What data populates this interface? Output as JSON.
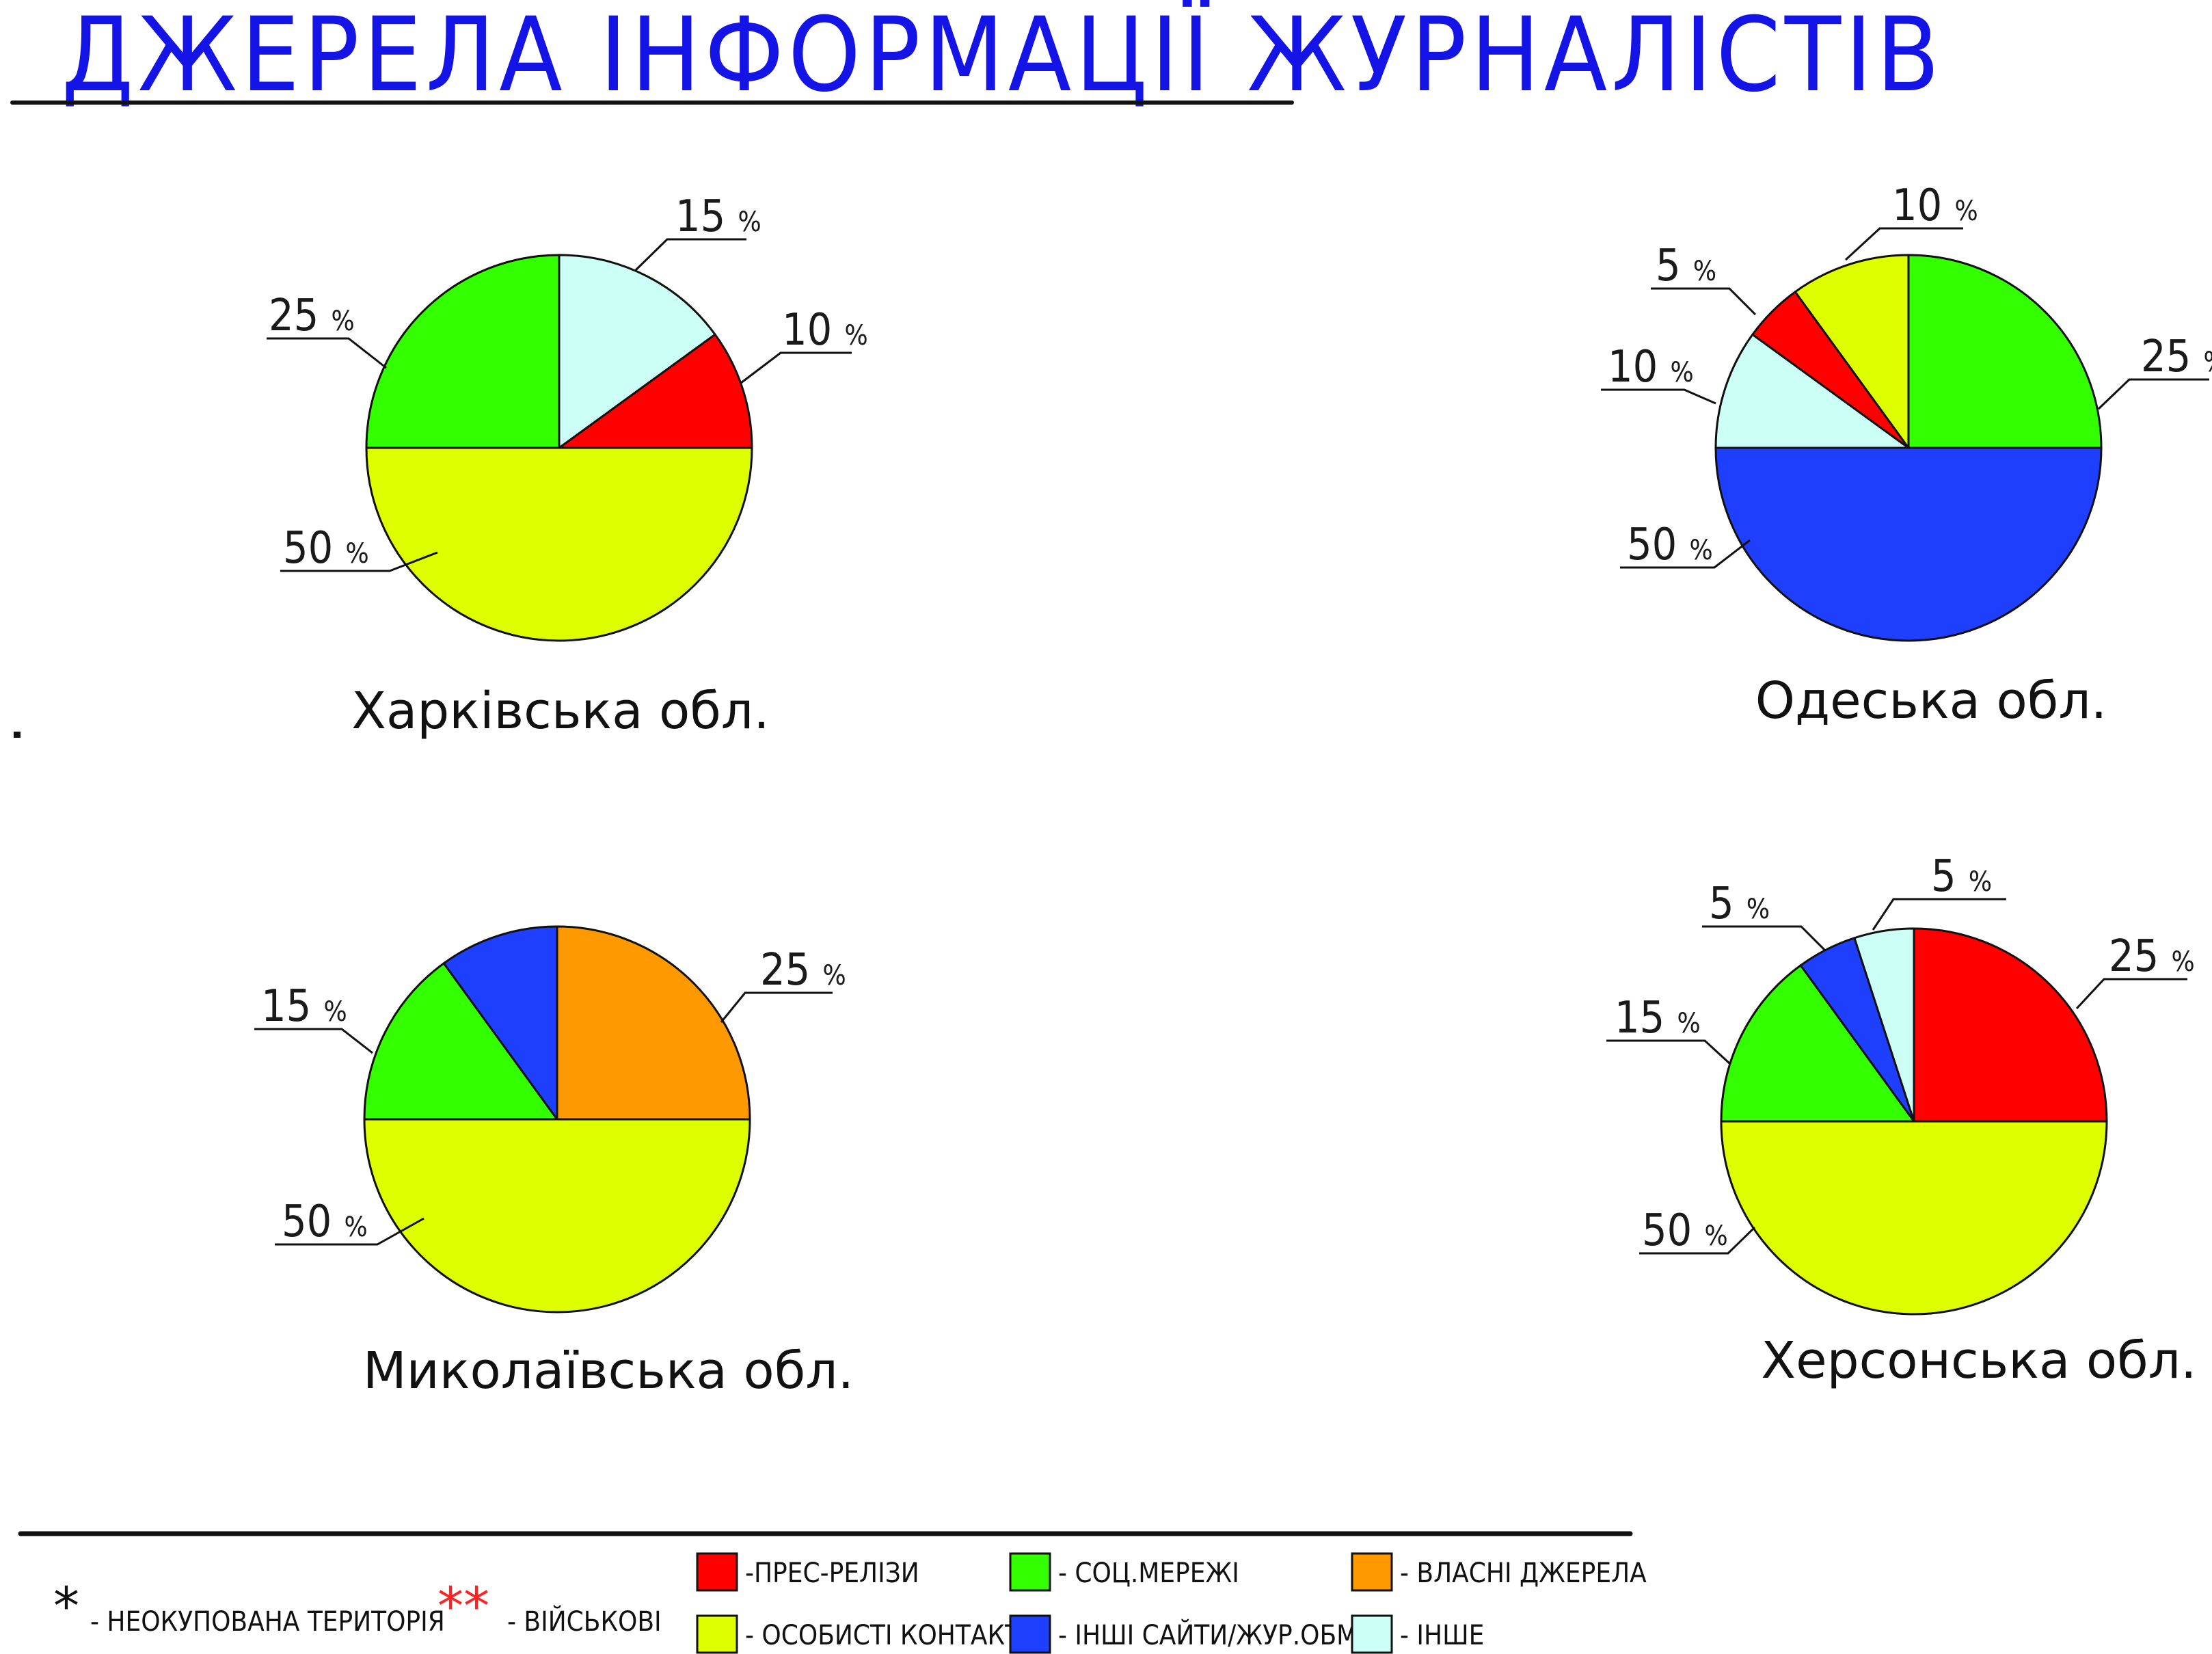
{
  "title": "ДЖЕРЕЛА ІНФОРМАЦІЇ ЖУРНАЛІСТІВ",
  "colors": {
    "title": "#1414e6",
    "press_releases": "#ff0000",
    "social_networks": "#33ff00",
    "own_sources": "#ff9900",
    "personal_contacts": "#ddff00",
    "other_sites": "#1f3fff",
    "other": "#ccfff5"
  },
  "chart_data": [
    {
      "type": "pie",
      "title": "Харківська обл.",
      "slices": [
        {
          "category": "ІНШЕ",
          "value": 15,
          "label": "15"
        },
        {
          "category": "ПРЕС-РЕЛІЗИ",
          "value": 10,
          "label": "10"
        },
        {
          "category": "ОСОБИСТІ КОНТАКТИ",
          "value": 50,
          "label": "50"
        },
        {
          "category": "СОЦ.МЕРЕЖІ",
          "value": 25,
          "label": "25"
        }
      ]
    },
    {
      "type": "pie",
      "title": "Одеська обл.",
      "slices": [
        {
          "category": "СОЦ.МЕРЕЖІ",
          "value": 25,
          "label": "25"
        },
        {
          "category": "ІНШІ САЙТИ/ЖУР.ОБМІН",
          "value": 50,
          "label": "50"
        },
        {
          "category": "ІНШЕ",
          "value": 10,
          "label": "10"
        },
        {
          "category": "ПРЕС-РЕЛІЗИ",
          "value": 5,
          "label": "5"
        },
        {
          "category": "ОСОБИСТІ КОНТАКТИ",
          "value": 10,
          "label": "10"
        }
      ]
    },
    {
      "type": "pie",
      "title": "Миколаївська обл.",
      "slices": [
        {
          "category": "ВЛАСНІ ДЖЕРЕЛА",
          "value": 25,
          "label": "25"
        },
        {
          "category": "ОСОБИСТІ КОНТАКТИ",
          "value": 50,
          "label": "50"
        },
        {
          "category": "СОЦ.МЕРЕЖІ",
          "value": 15,
          "label": "15"
        },
        {
          "category": "ІНШІ САЙТИ/ЖУР.ОБМІН",
          "value": 10,
          "label": ""
        }
      ]
    },
    {
      "type": "pie",
      "title": "Херсонська обл.",
      "slices": [
        {
          "category": "ПРЕС-РЕЛІЗИ",
          "value": 25,
          "label": "25"
        },
        {
          "category": "ОСОБИСТІ КОНТАКТИ",
          "value": 50,
          "label": "50"
        },
        {
          "category": "СОЦ.МЕРЕЖІ",
          "value": 15,
          "label": "15"
        },
        {
          "category": "ІНШІ САЙТИ/ЖУР.ОБМІН",
          "value": 5,
          "label": "5"
        },
        {
          "category": "ІНШЕ",
          "value": 5,
          "label": "5"
        }
      ]
    }
  ],
  "percent_sign": "%",
  "legend": {
    "markers": [
      {
        "symbol": "*",
        "text": "- НЕОКУПОВАНА ТЕРИТОРІЯ",
        "color": "#111111"
      },
      {
        "symbol": "**",
        "text": "- ВІЙСЬКОВІ",
        "color": "#ff2222"
      }
    ],
    "items": [
      {
        "key": "press_releases",
        "text": "-ПРЕС-РЕЛІЗИ"
      },
      {
        "key": "social_networks",
        "text": "- СОЦ.МЕРЕЖІ"
      },
      {
        "key": "own_sources",
        "text": "- ВЛАСНІ ДЖЕРЕЛА"
      },
      {
        "key": "personal_contacts",
        "text": "- ОСОБИСТІ КОНТАКТИ"
      },
      {
        "key": "other_sites",
        "text": "- ІНШІ САЙТИ/ЖУР.ОБМІН"
      },
      {
        "key": "other",
        "text": "- ІНШЕ"
      }
    ]
  }
}
